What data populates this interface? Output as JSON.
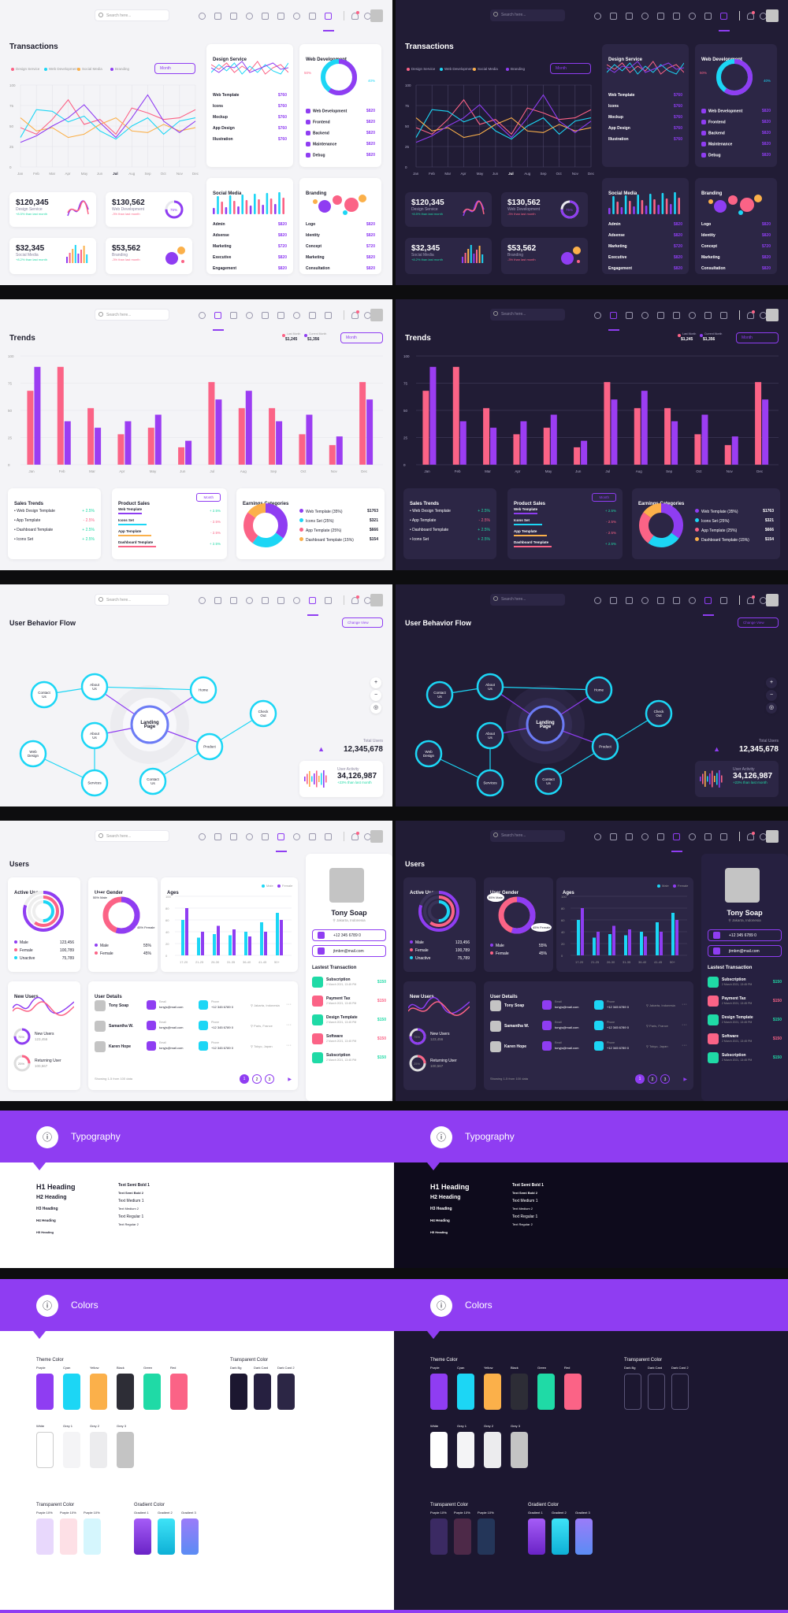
{
  "search_placeholder": "Search here...",
  "transactions": {
    "title": "Transactions",
    "legend": [
      "Design Service",
      "Web Development",
      "Social Media",
      "Branding"
    ],
    "period_button": "Month",
    "y_ticks": [
      "100",
      "75",
      "50",
      "25",
      "0"
    ],
    "months": [
      "Jan",
      "Feb",
      "Mar",
      "Apr",
      "May",
      "Jun",
      "Jul",
      "Aug",
      "Sep",
      "Oct",
      "Nov",
      "Dec"
    ],
    "stats": [
      {
        "value": "$120,345",
        "label": "Design Service",
        "change": "+8.5%",
        "note": "than last month"
      },
      {
        "value": "$130,562",
        "label": "Web Development",
        "change": "-3%",
        "note": "than last month"
      },
      {
        "value": "$32,345",
        "label": "Social Media",
        "change": "+8.2%",
        "note": "than last month"
      },
      {
        "value": "$53,562",
        "label": "Branding",
        "change": "-3%",
        "note": "than last month"
      }
    ],
    "donut_label": "75%"
  },
  "design_service": {
    "title": "Design Service",
    "items": [
      {
        "name": "Web Template",
        "value": "$760"
      },
      {
        "name": "Icons",
        "value": "$760"
      },
      {
        "name": "Mockup",
        "value": "$760"
      },
      {
        "name": "App Design",
        "value": "$760"
      },
      {
        "name": "Illustration",
        "value": "$760"
      }
    ]
  },
  "web_development": {
    "title": "Web Development",
    "pcts": [
      "50%",
      "40%"
    ],
    "items": [
      {
        "name": "Web Development",
        "value": "$820"
      },
      {
        "name": "Frontend",
        "value": "$820"
      },
      {
        "name": "Backend",
        "value": "$820"
      },
      {
        "name": "Maintenance",
        "value": "$820"
      },
      {
        "name": "Debug",
        "value": "$820"
      }
    ]
  },
  "social_media": {
    "title": "Social Media",
    "items": [
      {
        "name": "Admin",
        "value": "$820"
      },
      {
        "name": "Adsense",
        "value": "$820"
      },
      {
        "name": "Marketing",
        "value": "$720"
      },
      {
        "name": "Executive",
        "value": "$820"
      },
      {
        "name": "Engagement",
        "value": "$820"
      }
    ]
  },
  "branding": {
    "title": "Branding",
    "items": [
      {
        "name": "Logo",
        "value": "$820"
      },
      {
        "name": "Identity",
        "value": "$820"
      },
      {
        "name": "Concept",
        "value": "$720"
      },
      {
        "name": "Marketing",
        "value": "$820"
      },
      {
        "name": "Consultation",
        "value": "$820"
      }
    ]
  },
  "trends": {
    "title": "Trends",
    "legend_values": [
      "$1,245",
      "$1,356"
    ],
    "legend_names": [
      "Last Month",
      "Current Month"
    ],
    "period_button": "Month",
    "y_ticks": [
      "100",
      "75",
      "50",
      "25",
      "0"
    ],
    "months": [
      "Jan",
      "Feb",
      "Mar",
      "Apr",
      "May",
      "Jun",
      "Jul",
      "Aug",
      "Sep",
      "Oct",
      "Nov",
      "Dec"
    ],
    "sales_trends": {
      "title": "Sales Trends",
      "items": [
        {
          "name": "Web Design Template",
          "value": "+ 2.5%"
        },
        {
          "name": "App Template",
          "value": "- 2.5%"
        },
        {
          "name": "Dashboard Template",
          "value": "+ 2.5%"
        },
        {
          "name": "Icons Set",
          "value": "+ 2.5%"
        }
      ]
    },
    "product_sales": {
      "title": "Product Sales",
      "button": "Month",
      "items": [
        "Web Template",
        "Icons Set",
        "App Template",
        "Dashboard Template"
      ],
      "changes": [
        "+ 2.5%",
        "- 2.5%",
        "- 2.5%",
        "+ 2.5%"
      ]
    },
    "earnings": {
      "title": "Earnings Categories",
      "items": [
        {
          "name": "Web Template (35%)",
          "value": "$1763"
        },
        {
          "name": "Icons Set (25%)",
          "value": "$321"
        },
        {
          "name": "App Template (25%)",
          "value": "$666"
        },
        {
          "name": "Dashboard Template (15%)",
          "value": "$154"
        }
      ]
    }
  },
  "flow": {
    "title": "User Behavior Flow",
    "change_view": "Change View",
    "nodes": [
      "Contact Us",
      "About Us",
      "Home",
      "Check Out",
      "About Us",
      "Web Design",
      "Services",
      "Contact Us",
      "Product",
      "Landing Page"
    ],
    "total_users_label": "Total Users",
    "total_users": "12,345,678",
    "activity_label": "User Activity",
    "activity_value": "34,126,987",
    "activity_note": "+23% than last month"
  },
  "users": {
    "title": "Users",
    "active_users": {
      "title": "Active Users",
      "items": [
        {
          "name": "Male",
          "value": "123,456"
        },
        {
          "name": "Female",
          "value": "100,789"
        },
        {
          "name": "Unactive",
          "value": "75,789"
        }
      ]
    },
    "user_gender": {
      "title": "User Gender",
      "pcts": [
        "55% Male",
        "45% Female"
      ],
      "items": [
        {
          "name": "Male",
          "value": "55%"
        },
        {
          "name": "Female",
          "value": "45%"
        }
      ]
    },
    "ages": {
      "title": "Ages",
      "legend": [
        "Male",
        "Female"
      ],
      "groups": [
        "17-20",
        "21-25",
        "26-30",
        "31-35",
        "36-40",
        "41-45",
        "50+"
      ]
    },
    "new_users": {
      "title": "New Users",
      "items": [
        {
          "label": "New Users",
          "value": "123,456",
          "pct": "75%"
        },
        {
          "label": "Returning User",
          "value": "100,567",
          "pct": "25%"
        }
      ]
    },
    "details": {
      "title": "User Details",
      "rows": [
        {
          "name": "Tony Soap",
          "location": "Jakarta, Indonesia"
        },
        {
          "name": "Samantha W.",
          "location": "Paris, France"
        },
        {
          "name": "Karen Hope",
          "location": "Tokyo, Japan"
        }
      ],
      "email_label": "Email",
      "email_value": "tonyjs@mail.com",
      "phone_label": "Phone",
      "phone_value": "+12 345 6789 0",
      "showing": "Showing 1-5 from 100 data",
      "pages": [
        "1",
        "2",
        "3"
      ]
    },
    "profile": {
      "name": "Tony Soap",
      "location": "Jakarta, Indonesia",
      "phone": "+12 345 6789 0",
      "email": "jtmbm@mail.com",
      "transactions_title": "Lastest Transaction",
      "transactions": [
        {
          "name": "Subscription",
          "date": "2 March 2021, 13:45 PM",
          "value": "$150"
        },
        {
          "name": "Payment Tax",
          "date": "2 March 2021, 13:45 PM",
          "value": "$150"
        },
        {
          "name": "Design Template",
          "date": "2 March 2021, 13:45 PM",
          "value": "$150"
        },
        {
          "name": "Software",
          "date": "2 March 2021, 13:45 PM",
          "value": "$150"
        },
        {
          "name": "Subscription",
          "date": "2 March 2021, 13:45 PM",
          "value": "$150"
        }
      ]
    }
  },
  "typography": {
    "banner": "Typography",
    "headings": [
      "H1 Heading",
      "H2 Heading",
      "H3 Heading",
      "H4 Heading",
      "H5 Heading"
    ],
    "texts": [
      "Text Semi Bold 1",
      "Text Semi Bold 2",
      "Text Medium 1",
      "Text Medium 2",
      "Text Regular 1",
      "Text Regular 2"
    ]
  },
  "colors": {
    "banner": "Colors",
    "theme_title": "Theme Color",
    "theme": [
      {
        "name": "Purple",
        "hex": "#8f3df2"
      },
      {
        "name": "Cyan",
        "hex": "#1cd6f5"
      },
      {
        "name": "Yellow",
        "hex": "#fbb04a"
      },
      {
        "name": "Black",
        "hex": "#2d2d36"
      },
      {
        "name": "Green",
        "hex": "#1fdaa6"
      },
      {
        "name": "Red",
        "hex": "#fb6386"
      }
    ],
    "whites": [
      {
        "name": "White",
        "hex": "#ffffff"
      },
      {
        "name": "Grey 1",
        "hex": "#f4f4f6"
      },
      {
        "name": "Grey 2",
        "hex": "#ececee"
      },
      {
        "name": "Grey 3",
        "hex": "#c4c4c4"
      }
    ],
    "transparent_title": "Transparent Color",
    "transparent": [
      {
        "name": "Dark Bg",
        "hex": "#1c1730"
      },
      {
        "name": "Dark Card",
        "hex": "#262040"
      },
      {
        "name": "Dark Card 2",
        "hex": "#2c2645"
      }
    ],
    "transparent2_title": "Transparent Color",
    "transparent2": [
      {
        "name": "Purple 10%",
        "hex": "#e8d8fc"
      },
      {
        "name": "Purple 10%",
        "hex": "#fde0e6"
      },
      {
        "name": "Purple 10%",
        "hex": "#d5f6fd"
      }
    ],
    "gradient_title": "Gradient Color",
    "gradients": [
      {
        "name": "Gradient 1",
        "hex": "#8f3df2"
      },
      {
        "name": "Gradient 2",
        "hex": "#1cd6f5"
      },
      {
        "name": "Gradient 3",
        "hex": "#6b7bf5"
      }
    ]
  }
}
